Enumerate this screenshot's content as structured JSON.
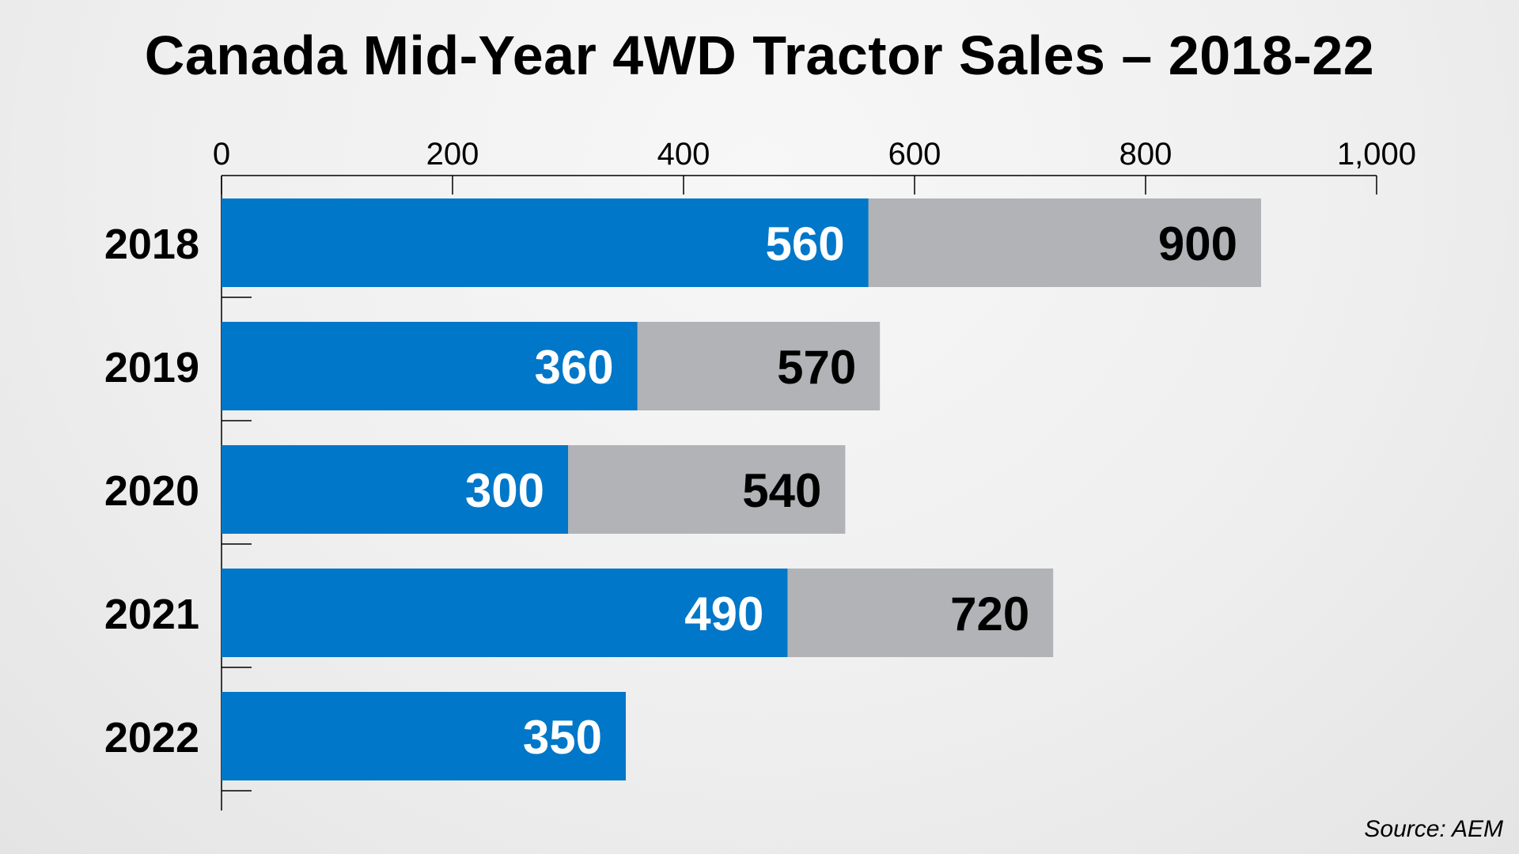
{
  "chart_data": {
    "type": "bar",
    "orientation": "horizontal",
    "title": "Canada Mid-Year 4WD Tractor Sales – 2018-22",
    "categories": [
      "2018",
      "2019",
      "2020",
      "2021",
      "2022"
    ],
    "series": [
      {
        "values": [
          560,
          360,
          300,
          490,
          350
        ],
        "color": "#0077c8",
        "label_color": "#ffffff"
      },
      {
        "values": [
          900,
          570,
          540,
          720,
          null
        ],
        "color": "#b1b3b6",
        "label_color": "#000000"
      }
    ],
    "series_arrangement": "overlapping (smaller value drawn in front of larger)",
    "xlim": [
      0,
      1000
    ],
    "xticks": [
      0,
      200,
      400,
      600,
      800,
      1000
    ],
    "xtick_labels": [
      "0",
      "200",
      "400",
      "600",
      "800",
      "1,000"
    ],
    "x_axis_position": "top",
    "grid": false,
    "legend": "none",
    "xlabel": "",
    "ylabel": "",
    "source": "Source: AEM"
  }
}
